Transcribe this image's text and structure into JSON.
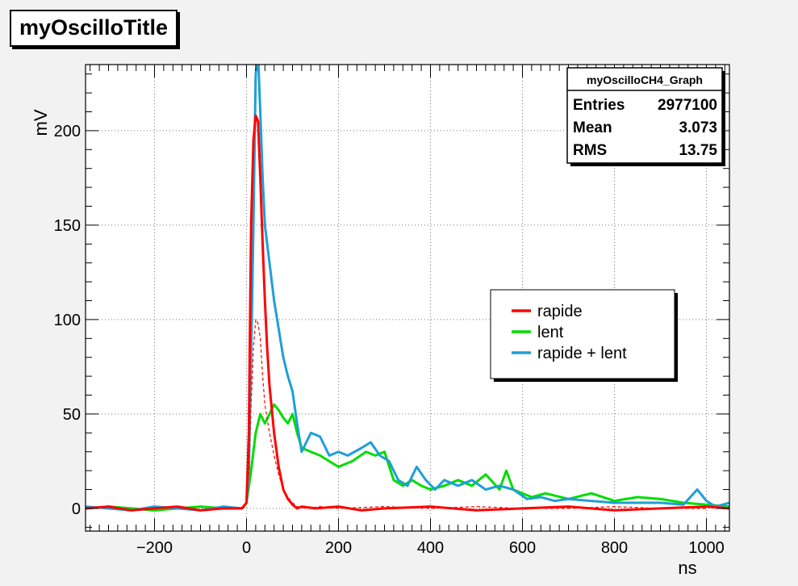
{
  "title": "myOscilloTitle",
  "stats": {
    "name": "myOscilloCH4_Graph",
    "rows": [
      {
        "label": "Entries",
        "value": "2977100"
      },
      {
        "label": "Mean",
        "value": "3.073"
      },
      {
        "label": "RMS",
        "value": "13.75"
      }
    ]
  },
  "legend": [
    {
      "label": "rapide",
      "color": "#ff0000"
    },
    {
      "label": "lent",
      "color": "#00dd00"
    },
    {
      "label": "rapide + lent",
      "color": "#1e9fd8"
    }
  ],
  "chart_data": {
    "type": "line",
    "title": "myOscilloTitle",
    "xlabel": "ns",
    "ylabel": "mV",
    "xlim": [
      -350,
      1050
    ],
    "ylim": [
      -12,
      235
    ],
    "x_ticks": [
      -200,
      0,
      200,
      400,
      600,
      800,
      1000
    ],
    "y_ticks": [
      0,
      50,
      100,
      150,
      200
    ],
    "grid": true,
    "legend_position": "right",
    "series": [
      {
        "name": "rapide + lent",
        "color": "#1e9fd8",
        "x": [
          -350,
          -300,
          -250,
          -200,
          -150,
          -100,
          -50,
          -10,
          0,
          5,
          10,
          15,
          18,
          20,
          25,
          30,
          35,
          40,
          50,
          60,
          70,
          80,
          90,
          100,
          110,
          120,
          130,
          140,
          160,
          180,
          200,
          220,
          250,
          270,
          290,
          310,
          330,
          350,
          370,
          390,
          410,
          430,
          460,
          490,
          520,
          550,
          580,
          610,
          640,
          670,
          700,
          750,
          800,
          850,
          900,
          950,
          980,
          1000,
          1020,
          1050
        ],
        "y": [
          1,
          0,
          -1,
          1,
          0,
          -1,
          1,
          0,
          3,
          20,
          80,
          150,
          200,
          230,
          240,
          210,
          175,
          150,
          130,
          110,
          95,
          80,
          70,
          62,
          45,
          30,
          35,
          40,
          38,
          28,
          30,
          28,
          32,
          35,
          28,
          25,
          15,
          12,
          22,
          15,
          10,
          15,
          12,
          15,
          10,
          12,
          10,
          5,
          6,
          4,
          5,
          4,
          3,
          3,
          3,
          2,
          10,
          4,
          1,
          3
        ]
      },
      {
        "name": "lent",
        "color": "#00dd00",
        "x": [
          -350,
          -300,
          -250,
          -200,
          -150,
          -100,
          -50,
          -10,
          0,
          10,
          20,
          30,
          40,
          50,
          60,
          70,
          80,
          90,
          100,
          110,
          120,
          140,
          160,
          180,
          200,
          230,
          260,
          280,
          300,
          320,
          340,
          360,
          380,
          400,
          430,
          460,
          490,
          520,
          550,
          565,
          580,
          600,
          620,
          650,
          700,
          750,
          800,
          850,
          900,
          950,
          1000,
          1050
        ],
        "y": [
          0,
          1,
          0,
          -1,
          0,
          1,
          0,
          0,
          3,
          20,
          40,
          50,
          45,
          50,
          55,
          52,
          48,
          45,
          50,
          40,
          32,
          30,
          28,
          25,
          22,
          25,
          30,
          28,
          30,
          15,
          12,
          15,
          12,
          10,
          12,
          15,
          12,
          18,
          10,
          20,
          10,
          8,
          6,
          8,
          5,
          8,
          4,
          6,
          5,
          3,
          2,
          1
        ]
      },
      {
        "name": "rapide",
        "color": "#ff0000",
        "x": [
          -350,
          -300,
          -250,
          -200,
          -150,
          -100,
          -50,
          -10,
          0,
          5,
          10,
          15,
          20,
          25,
          30,
          35,
          40,
          45,
          50,
          60,
          70,
          80,
          90,
          100,
          110,
          120,
          150,
          200,
          250,
          300,
          400,
          500,
          600,
          700,
          800,
          900,
          1000,
          1050
        ],
        "y": [
          0,
          1,
          -1,
          0,
          1,
          -1,
          0,
          0,
          3,
          40,
          150,
          195,
          208,
          205,
          175,
          140,
          110,
          85,
          65,
          40,
          22,
          10,
          5,
          2,
          0,
          1,
          0,
          1,
          -1,
          0,
          1,
          -1,
          0,
          1,
          -1,
          0,
          1,
          0
        ]
      },
      {
        "name": "rapide (dashed)",
        "color": "#ff0000",
        "x": [
          -20,
          0,
          5,
          10,
          15,
          20,
          25,
          30,
          35,
          40,
          50,
          60,
          70,
          80,
          90,
          100,
          110,
          130,
          160,
          200,
          300,
          400,
          500,
          600,
          700,
          800,
          900,
          1000
        ],
        "y": [
          0,
          2,
          20,
          55,
          85,
          100,
          98,
          90,
          70,
          55,
          40,
          28,
          18,
          10,
          6,
          3,
          1,
          0,
          1,
          0,
          1,
          0,
          1,
          0,
          0,
          1,
          0,
          0
        ]
      }
    ]
  }
}
